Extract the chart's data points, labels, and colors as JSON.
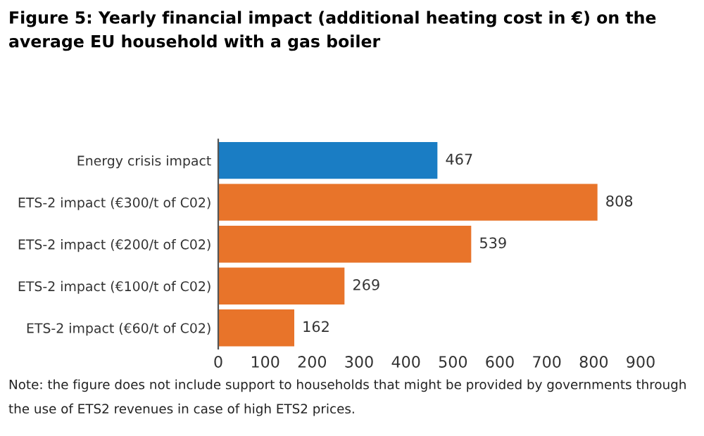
{
  "chart_data": {
    "type": "bar",
    "orientation": "horizontal",
    "title": "Figure 5: Yearly financial impact (additional heating cost in €) on the average EU household with a gas boiler",
    "categories": [
      "Energy crisis impact",
      "ETS-2 impact (€300/t of C02)",
      "ETS-2 impact (€200/t of C02)",
      "ETS-2 impact (€100/t of C02)",
      "ETS-2 impact (€60/t of C02)"
    ],
    "values": [
      467,
      808,
      539,
      269,
      162
    ],
    "colors": [
      "#1a7dc4",
      "#e8742a",
      "#e8742a",
      "#e8742a",
      "#e8742a"
    ],
    "xlim": [
      0,
      900
    ],
    "xticks": [
      0,
      100,
      200,
      300,
      400,
      500,
      600,
      700,
      800,
      900
    ],
    "data_labels": true,
    "grid": false,
    "annotations": [
      "Note: the figure does not include support to households that might be provided by governments through the use of ETS2 revenues in case of high ETS2 prices."
    ]
  }
}
